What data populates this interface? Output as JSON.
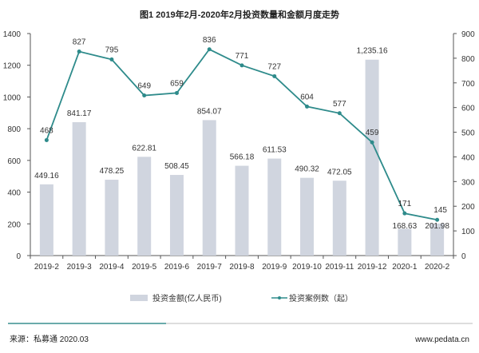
{
  "chart_data": {
    "type": "bar+line",
    "title": "图1 2019年2月-2020年2月投资数量和金额月度走势",
    "categories": [
      "2019-2",
      "2019-3",
      "2019-4",
      "2019-5",
      "2019-6",
      "2019-7",
      "2019-8",
      "2019-9",
      "2019-10",
      "2019-11",
      "2019-12",
      "2020-1",
      "2020-2"
    ],
    "series": [
      {
        "name": "投资金额(亿人民币)",
        "type": "bar",
        "axis": "left",
        "color": "#d0d5df",
        "values": [
          449.16,
          841.17,
          478.25,
          622.81,
          508.45,
          854.07,
          566.18,
          611.53,
          490.32,
          472.05,
          1235.16,
          168.63,
          201.98
        ],
        "labels": [
          "449.16",
          "841.17",
          "478.25",
          "622.81",
          "508.45",
          "854.07",
          "566.18",
          "611.53",
          "490.32",
          "472.05",
          "1,235.16",
          "168.63",
          "201.98"
        ]
      },
      {
        "name": "投资案例数（起）",
        "type": "line",
        "axis": "right",
        "color": "#2e8b8b",
        "values": [
          468,
          827,
          795,
          649,
          659,
          836,
          771,
          727,
          604,
          577,
          459,
          171,
          145
        ]
      }
    ],
    "y_left": {
      "range": [
        0,
        1400
      ],
      "ticks": [
        0,
        200,
        400,
        600,
        800,
        1000,
        1200,
        1400
      ]
    },
    "y_right": {
      "range": [
        0,
        900
      ],
      "ticks": [
        0,
        100,
        200,
        300,
        400,
        500,
        600,
        700,
        800,
        900
      ]
    },
    "legend": "bottom",
    "grid": false
  },
  "footer": {
    "source": "来源：私募通 2020.03",
    "website": "www.pedata.cn"
  }
}
